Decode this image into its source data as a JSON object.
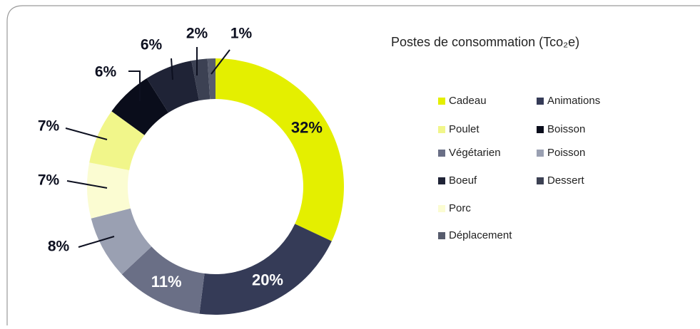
{
  "chart_data": {
    "type": "donut",
    "title": "Postes de consommation (Tco₂e)",
    "categories": [
      "Cadeau",
      "Animations",
      "Végétarien",
      "Poisson",
      "Porc",
      "Poulet",
      "Boisson",
      "Boeuf",
      "Dessert",
      "Déplacement"
    ],
    "values": [
      32,
      20,
      11,
      8,
      7,
      7,
      6,
      6,
      2,
      1
    ],
    "value_labels": [
      "32%",
      "20%",
      "11%",
      "8%",
      "7%",
      "7%",
      "6%",
      "6%",
      "2%",
      "1%"
    ],
    "colors": [
      "#e4ef00",
      "#353b57",
      "#6a6f86",
      "#9aa0b2",
      "#fbfcd2",
      "#f1f68a",
      "#0a0d1b",
      "#1f2336",
      "#3c4153",
      "#575c6d"
    ]
  }
}
